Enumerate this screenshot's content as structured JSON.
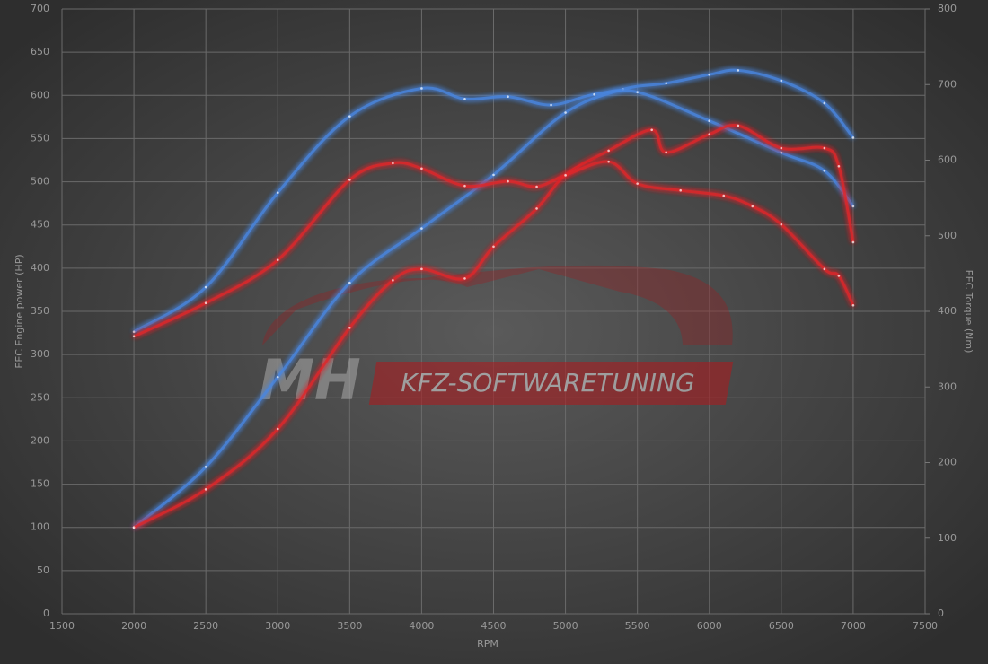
{
  "chart_data": {
    "type": "line",
    "xlabel": "RPM",
    "ylabel": "EEC Engine power (HP)",
    "y2label": "EEC Torque (Nm)",
    "watermark": {
      "logo": "MH",
      "text": "KFZ-SOFTWARETUNING"
    },
    "xlim": [
      1500,
      7500
    ],
    "xticks": [
      1500,
      2000,
      2500,
      3000,
      3500,
      4000,
      4500,
      5000,
      5500,
      6000,
      6500,
      7000,
      7500
    ],
    "ylim": [
      0,
      700
    ],
    "yticks": [
      0,
      50,
      100,
      150,
      200,
      250,
      300,
      350,
      400,
      450,
      500,
      550,
      600,
      650,
      700
    ],
    "y2lim": [
      0,
      800
    ],
    "y2ticks": [
      0,
      100,
      200,
      300,
      400,
      500,
      600,
      700,
      800
    ],
    "grid": true,
    "series": [
      {
        "color": "#4a86e0",
        "x": [
          2000,
          2500,
          3000,
          3500,
          4000,
          4500,
          5000,
          5400,
          5700,
          6000,
          6200,
          6500,
          6800,
          7000
        ],
        "values": [
          100,
          170,
          274,
          383,
          446,
          508,
          580,
          607,
          614,
          624,
          629,
          617,
          591,
          551
        ]
      },
      {
        "color": "#4a86e0",
        "axis": "y2",
        "x": [
          2000,
          2500,
          3000,
          3500,
          4000,
          4300,
          4600,
          4900,
          5200,
          5500,
          6000,
          6500,
          6800,
          7000
        ],
        "values": [
          373,
          432,
          557,
          658,
          695,
          681,
          684,
          673,
          687,
          690,
          652,
          610,
          586,
          539
        ]
      },
      {
        "color": "#e0262b",
        "x": [
          2000,
          2500,
          3000,
          3500,
          3800,
          4000,
          4300,
          4500,
          4800,
          5000,
          5300,
          5600,
          5700,
          6000,
          6200,
          6500,
          6800,
          6900,
          7000
        ],
        "values": [
          100,
          144,
          214,
          331,
          386,
          399,
          388,
          425,
          469,
          508,
          536,
          560,
          534,
          555,
          565,
          539,
          539,
          518,
          430
        ]
      },
      {
        "color": "#e0262b",
        "axis": "y2",
        "x": [
          2000,
          2500,
          3000,
          3500,
          3800,
          4000,
          4300,
          4600,
          4800,
          5000,
          5300,
          5500,
          5800,
          6100,
          6300,
          6500,
          6800,
          6900,
          7000
        ],
        "values": [
          367,
          411,
          468,
          574,
          596,
          589,
          566,
          572,
          565,
          580,
          598,
          569,
          560,
          553,
          539,
          515,
          456,
          447,
          408
        ]
      }
    ]
  }
}
